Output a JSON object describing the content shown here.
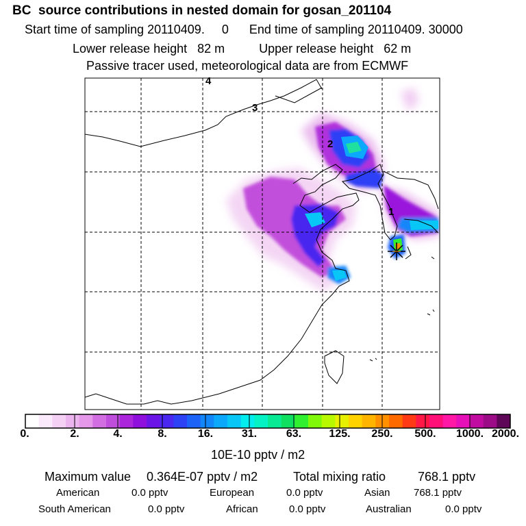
{
  "header": {
    "title": "BC  source contributions in nested domain for gosan_201104",
    "line2": "Start time of sampling 20110409.     0      End time of sampling 20110409. 30000",
    "line3": "Lower release height   82 m          Upper release height   62 m",
    "line4": "Passive tracer used, meteorological data are from ECMWF"
  },
  "map": {
    "labels": [
      "4",
      "3",
      "2",
      "1"
    ],
    "receptor_marker": "receptor-star"
  },
  "colorbar": {
    "ticks": [
      "0.",
      "2.",
      "4.",
      "8.",
      "16.",
      "31.",
      "63.",
      "125.",
      "250.",
      "500.",
      "1000.",
      "2000."
    ],
    "unit": "10E-10 pptv / m2",
    "colors": [
      "#ffffff",
      "#fbeafb",
      "#f4d0f4",
      "#ecb4ee",
      "#e598ea",
      "#d26ee2",
      "#c04edc",
      "#ab25dc",
      "#8f10dc",
      "#6b16e6",
      "#4a28ef",
      "#2d41f5",
      "#1d63f8",
      "#1287fa",
      "#0ba8fb",
      "#08c6f6",
      "#03ecee",
      "#05f2c4",
      "#09ea95",
      "#10e060",
      "#30f030",
      "#80f80a",
      "#b8f800",
      "#e6f000",
      "#ffd200",
      "#ffb400",
      "#ff9000",
      "#ff6a00",
      "#ff3a14",
      "#ff1846",
      "#ff1078",
      "#ff18a6",
      "#e510b8",
      "#c00ca0",
      "#9c0c86",
      "#5e0658"
    ]
  },
  "summary": {
    "max_label": "Maximum value",
    "max_value": "0.364E-07 pptv / m2",
    "total_label": "Total mixing ratio",
    "total_value": "768.1 pptv",
    "american_label": "American",
    "american_value": "0.0 pptv",
    "european_label": "European",
    "european_value": "0.0 pptv",
    "asian_label": "Asian",
    "asian_value": "768.1 pptv",
    "south_american_label": "South American",
    "south_american_value": "0.0 pptv",
    "african_label": "African",
    "african_value": "0.0 pptv",
    "australian_label": "Australian",
    "australian_value": "0.0 pptv"
  }
}
